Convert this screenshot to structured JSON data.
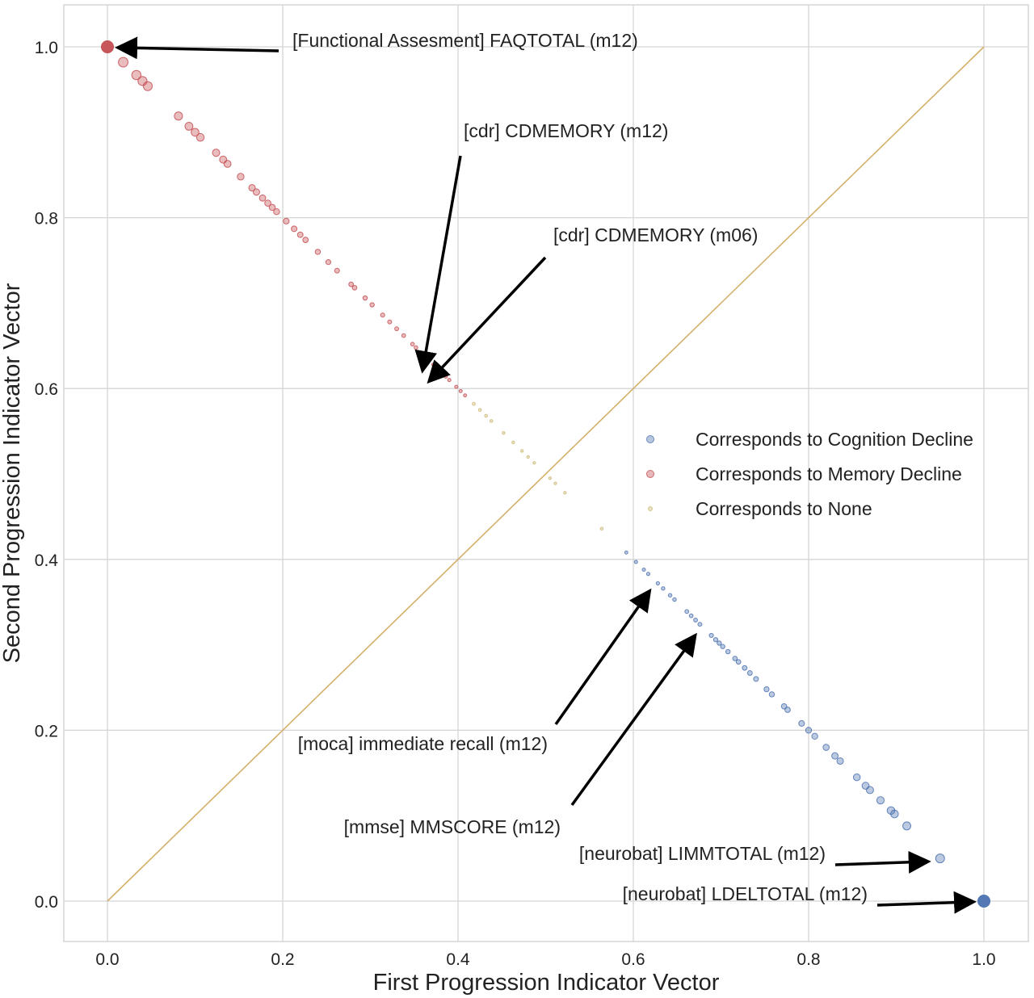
{
  "chart_data": {
    "type": "scatter",
    "xlabel": "First Progression Indicator Vector",
    "ylabel": "Second Progression Indicator Vector",
    "xlim": [
      -0.05,
      1.05
    ],
    "ylim": [
      -0.05,
      1.05
    ],
    "xticks": [
      "0.0",
      "0.2",
      "0.4",
      "0.6",
      "0.8",
      "1.0"
    ],
    "yticks": [
      "0.0",
      "0.2",
      "0.4",
      "0.6",
      "0.8",
      "1.0"
    ],
    "grid": true,
    "legend_position": "center-right",
    "reference_line": {
      "from": [
        0,
        0
      ],
      "to": [
        1,
        1
      ],
      "color": "#d4b06a"
    },
    "series": [
      {
        "name": "Corresponds to Cognition Decline",
        "color": "#4c72b0",
        "points": [
          [
            0.592,
            0.408
          ],
          [
            0.603,
            0.397
          ],
          [
            0.612,
            0.388
          ],
          [
            0.617,
            0.383
          ],
          [
            0.628,
            0.372
          ],
          [
            0.634,
            0.366
          ],
          [
            0.642,
            0.358
          ],
          [
            0.647,
            0.353
          ],
          [
            0.661,
            0.339
          ],
          [
            0.666,
            0.334
          ],
          [
            0.671,
            0.329
          ],
          [
            0.676,
            0.324
          ],
          [
            0.689,
            0.311
          ],
          [
            0.694,
            0.306
          ],
          [
            0.698,
            0.302
          ],
          [
            0.702,
            0.298
          ],
          [
            0.708,
            0.292
          ],
          [
            0.716,
            0.284
          ],
          [
            0.72,
            0.28
          ],
          [
            0.727,
            0.273
          ],
          [
            0.733,
            0.267
          ],
          [
            0.74,
            0.26
          ],
          [
            0.752,
            0.248
          ],
          [
            0.758,
            0.242
          ],
          [
            0.772,
            0.228
          ],
          [
            0.776,
            0.224
          ],
          [
            0.792,
            0.208
          ],
          [
            0.8,
            0.2
          ],
          [
            0.807,
            0.193
          ],
          [
            0.82,
            0.18
          ],
          [
            0.83,
            0.17
          ],
          [
            0.836,
            0.164
          ],
          [
            0.855,
            0.145
          ],
          [
            0.865,
            0.135
          ],
          [
            0.87,
            0.13
          ],
          [
            0.882,
            0.118
          ],
          [
            0.894,
            0.106
          ],
          [
            0.898,
            0.102
          ],
          [
            0.912,
            0.088
          ],
          [
            0.95,
            0.05
          ],
          [
            1.0,
            0.0
          ]
        ]
      },
      {
        "name": "Corresponds to Memory Decline",
        "color": "#c44e52",
        "points": [
          [
            0.0,
            1.0
          ],
          [
            0.018,
            0.982
          ],
          [
            0.033,
            0.967
          ],
          [
            0.04,
            0.96
          ],
          [
            0.046,
            0.954
          ],
          [
            0.081,
            0.919
          ],
          [
            0.093,
            0.907
          ],
          [
            0.1,
            0.9
          ],
          [
            0.106,
            0.894
          ],
          [
            0.124,
            0.876
          ],
          [
            0.132,
            0.868
          ],
          [
            0.137,
            0.863
          ],
          [
            0.152,
            0.848
          ],
          [
            0.165,
            0.835
          ],
          [
            0.17,
            0.83
          ],
          [
            0.177,
            0.823
          ],
          [
            0.183,
            0.817
          ],
          [
            0.188,
            0.812
          ],
          [
            0.193,
            0.807
          ],
          [
            0.204,
            0.796
          ],
          [
            0.213,
            0.787
          ],
          [
            0.22,
            0.78
          ],
          [
            0.226,
            0.774
          ],
          [
            0.24,
            0.76
          ],
          [
            0.252,
            0.748
          ],
          [
            0.262,
            0.738
          ],
          [
            0.278,
            0.722
          ],
          [
            0.282,
            0.718
          ],
          [
            0.294,
            0.706
          ],
          [
            0.302,
            0.698
          ],
          [
            0.314,
            0.686
          ],
          [
            0.322,
            0.678
          ],
          [
            0.33,
            0.67
          ],
          [
            0.338,
            0.662
          ],
          [
            0.348,
            0.652
          ],
          [
            0.352,
            0.648
          ],
          [
            0.36,
            0.64
          ],
          [
            0.366,
            0.634
          ],
          [
            0.372,
            0.628
          ],
          [
            0.38,
            0.62
          ],
          [
            0.386,
            0.614
          ],
          [
            0.39,
            0.61
          ],
          [
            0.398,
            0.602
          ],
          [
            0.403,
            0.597
          ],
          [
            0.408,
            0.592
          ]
        ]
      },
      {
        "name": "Corresponds to None",
        "color": "#ccb974",
        "points": [
          [
            0.418,
            0.582
          ],
          [
            0.425,
            0.575
          ],
          [
            0.432,
            0.568
          ],
          [
            0.438,
            0.562
          ],
          [
            0.452,
            0.548
          ],
          [
            0.463,
            0.537
          ],
          [
            0.473,
            0.527
          ],
          [
            0.48,
            0.52
          ],
          [
            0.487,
            0.513
          ],
          [
            0.505,
            0.495
          ],
          [
            0.511,
            0.489
          ],
          [
            0.522,
            0.478
          ],
          [
            0.564,
            0.436
          ]
        ]
      }
    ],
    "annotations": [
      {
        "text": "[Functional Assesment] FAQTOTAL (m12)",
        "point": [
          0.0,
          1.0
        ]
      },
      {
        "text": "[cdr] CDMEMORY (m12)",
        "point": [
          0.36,
          0.64
        ]
      },
      {
        "text": "[cdr] CDMEMORY (m06)",
        "point": [
          0.38,
          0.62
        ]
      },
      {
        "text": "[moca] immediate recall (m12)",
        "point": [
          0.628,
          0.372
        ]
      },
      {
        "text": "[mmse] MMSCORE (m12)",
        "point": [
          0.68,
          0.32
        ]
      },
      {
        "text": "[neurobat] LIMMTOTAL (m12)",
        "point": [
          0.95,
          0.05
        ]
      },
      {
        "text": "[neurobat] LDELTOTAL (m12)",
        "point": [
          1.0,
          0.0
        ]
      }
    ]
  }
}
